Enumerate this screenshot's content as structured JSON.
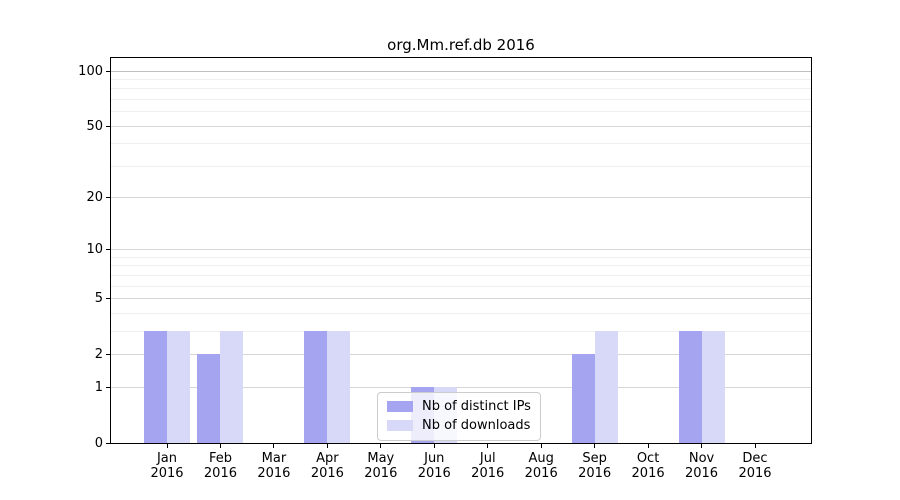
{
  "chart_data": {
    "type": "bar",
    "title": "org.Mm.ref.db 2016",
    "months": [
      "Jan",
      "Feb",
      "Mar",
      "Apr",
      "May",
      "Jun",
      "Jul",
      "Aug",
      "Sep",
      "Oct",
      "Nov",
      "Dec"
    ],
    "year_label": "2016",
    "series": [
      {
        "name": "Nb of distinct IPs",
        "color": "#a4a4f1",
        "values": [
          3,
          2,
          0,
          3,
          0,
          1,
          0,
          0,
          2,
          0,
          3,
          0
        ]
      },
      {
        "name": "Nb of downloads",
        "color": "#d8d8f8",
        "values": [
          3,
          3,
          0,
          3,
          0,
          1,
          0,
          0,
          3,
          0,
          3,
          0
        ]
      }
    ],
    "scale": "log1p",
    "ylim": [
      0,
      100
    ],
    "y_major_ticks": [
      0,
      1,
      2,
      5,
      10,
      20,
      50,
      100
    ],
    "y_tick_labels": [
      "0",
      "1",
      "2",
      "5",
      "10",
      "20",
      "50",
      "100"
    ],
    "y_minor_gridlines": [
      3,
      4,
      6,
      7,
      8,
      9,
      30,
      40,
      60,
      70,
      80,
      90
    ],
    "grid": true,
    "legend": {
      "position": "lower center",
      "labels": [
        "Nb of distinct IPs",
        "Nb of downloads"
      ]
    },
    "colors": {
      "grid_major": "#d6d6d6",
      "grid_minor": "#efefef",
      "grid_top": "#c0c0c0",
      "axis": "#000000",
      "background": "#ffffff"
    }
  }
}
